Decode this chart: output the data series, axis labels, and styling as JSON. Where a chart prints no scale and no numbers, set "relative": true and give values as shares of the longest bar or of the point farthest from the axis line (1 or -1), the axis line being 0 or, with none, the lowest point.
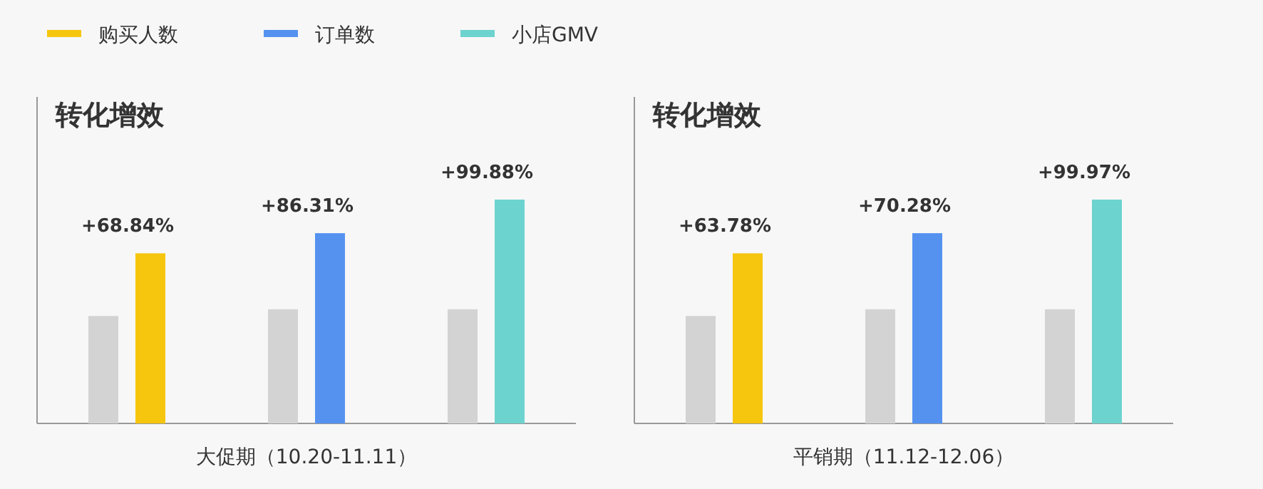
{
  "chart_data": [
    {
      "type": "bar",
      "title": "转化增效",
      "xlabel": "大促期（10.20-11.11）",
      "relative": true,
      "categories": [
        null,
        null,
        null
      ],
      "series": [
        {
          "color": "#d3d3d3",
          "values": [
            0.48,
            0.51,
            0.51
          ]
        },
        {
          "colors": [
            "#f6c60f",
            "#5592f0",
            "#6dd3cf"
          ],
          "values": [
            0.76,
            0.85,
            1
          ]
        }
      ],
      "annotations": [
        "购买人数",
        "订单数",
        "小店GMV",
        "+68.84%",
        "+86.31%",
        "+99.88%"
      ]
    },
    {
      "type": "bar",
      "title": "转化增效",
      "xlabel": "平销期（11.12-12.06）",
      "relative": true,
      "categories": [
        null,
        null,
        null
      ],
      "series": [
        {
          "color": "#d3d3d3",
          "values": [
            0.48,
            0.51,
            0.51
          ]
        },
        {
          "colors": [
            "#f6c60f",
            "#5592f0",
            "#6dd3cf"
          ],
          "values": [
            0.76,
            0.85,
            1
          ]
        }
      ],
      "annotations": [
        "+63.78%",
        "+70.28%",
        "+99.97%"
      ]
    }
  ]
}
